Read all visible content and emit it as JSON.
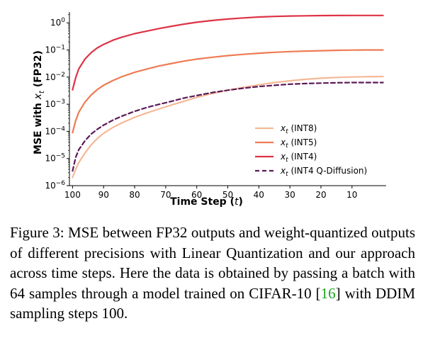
{
  "chart_data": {
    "type": "line",
    "xlabel": "Time Step (t)",
    "ylabel": "MSE with x_t (FP32)",
    "x_ticks": [
      100,
      90,
      80,
      70,
      60,
      50,
      40,
      30,
      20,
      10
    ],
    "y_ticks": [
      "10^0",
      "10^-1",
      "10^-2",
      "10^-3",
      "10^-4",
      "10^-5",
      "10^-6"
    ],
    "y_scale": "log",
    "xlim": [
      101,
      -1
    ],
    "ylim": [
      1e-06,
      2.5
    ],
    "legend_position": "bottom-right",
    "x": [
      100,
      99,
      98,
      96,
      94,
      92,
      90,
      87,
      84,
      80,
      76,
      72,
      68,
      64,
      60,
      55,
      50,
      45,
      40,
      35,
      30,
      25,
      20,
      15,
      10,
      5,
      0
    ],
    "series": [
      {
        "name": "x_t (INT8)",
        "color": "#f4b896",
        "dash": "solid",
        "values": [
          2e-06,
          4e-06,
          7e-06,
          1.6e-05,
          3.2e-05,
          5.5e-05,
          8.5e-05,
          0.00014,
          0.00021,
          0.00033,
          0.00048,
          0.00068,
          0.00095,
          0.0013,
          0.0018,
          0.0025,
          0.0033,
          0.0042,
          0.0052,
          0.0063,
          0.0073,
          0.0083,
          0.0091,
          0.0097,
          0.0101,
          0.0104,
          0.0105
        ]
      },
      {
        "name": "x_t (INT5)",
        "color": "#ef7b54",
        "dash": "solid",
        "values": [
          9e-05,
          0.00025,
          0.0005,
          0.0012,
          0.0022,
          0.0035,
          0.005,
          0.0075,
          0.0105,
          0.015,
          0.02,
          0.026,
          0.032,
          0.039,
          0.046,
          0.054,
          0.062,
          0.069,
          0.076,
          0.082,
          0.087,
          0.091,
          0.094,
          0.097,
          0.099,
          0.1,
          0.1
        ]
      },
      {
        "name": "x_t (INT4)",
        "color": "#dd3346",
        "dash": "solid",
        "values": [
          0.0034,
          0.0095,
          0.02,
          0.046,
          0.08,
          0.12,
          0.16,
          0.23,
          0.3,
          0.4,
          0.5,
          0.62,
          0.75,
          0.9,
          1.05,
          1.22,
          1.38,
          1.52,
          1.64,
          1.72,
          1.78,
          1.82,
          1.85,
          1.86,
          1.87,
          1.87,
          1.87
        ]
      },
      {
        "name": "x_t (INT4 Q-Diffusion)",
        "color": "#5c1a58",
        "dash": "dashed",
        "values": [
          3.5e-06,
          1.1e-05,
          2.1e-05,
          4.5e-05,
          8e-05,
          0.00012,
          0.00017,
          0.00026,
          0.00037,
          0.00055,
          0.00077,
          0.001,
          0.0013,
          0.0017,
          0.0021,
          0.0027,
          0.0033,
          0.0039,
          0.0045,
          0.005,
          0.0055,
          0.0058,
          0.006,
          0.0062,
          0.0063,
          0.0063,
          0.0063
        ]
      }
    ]
  },
  "caption": {
    "before_ref": "Figure 3: MSE between FP32 outputs and weight-quantized outputs of different precisions with Linear Quantization and our approach across time steps. Here the data is obtained by passing a batch with 64 samples through a model trained on CIFAR-10 [",
    "ref": "16",
    "after_ref": "] with DDIM sampling steps 100."
  }
}
